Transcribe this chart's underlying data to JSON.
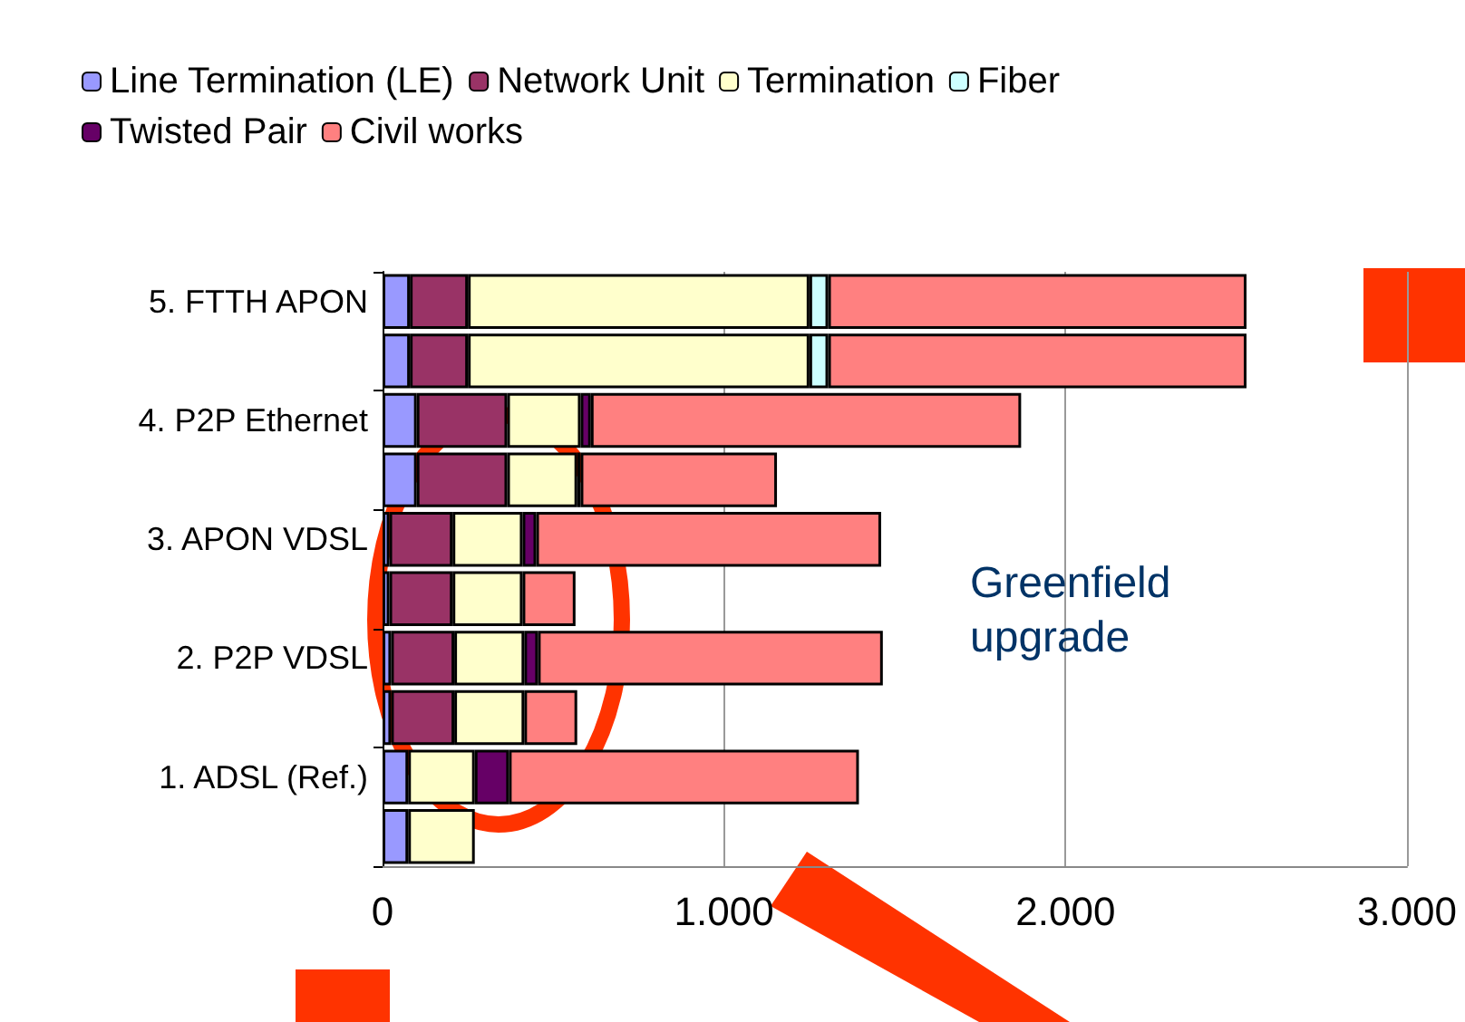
{
  "chart_data": {
    "type": "bar",
    "orientation": "horizontal",
    "stacked": true,
    "categories": [
      "5. FTTH APON",
      null,
      "4. P2P Ethernet",
      null,
      "3. APON VDSL",
      null,
      "2. P2P VDSL",
      null,
      "1. ADSL (Ref.)",
      null
    ],
    "series": [
      {
        "name": "Line Termination (LE)",
        "color": "#9999ff",
        "values": [
          80,
          80,
          100,
          100,
          20,
          20,
          25,
          25,
          75,
          75
        ]
      },
      {
        "name": "Network Unit",
        "color": "#993366",
        "values": [
          170,
          170,
          265,
          265,
          185,
          185,
          185,
          185,
          null,
          null
        ]
      },
      {
        "name": "Termination",
        "color": "#ffffcc",
        "values": [
          1000,
          1000,
          215,
          205,
          205,
          205,
          205,
          205,
          195,
          195
        ]
      },
      {
        "name": "Fiber",
        "color": "#ccffff",
        "values": [
          55,
          55,
          null,
          10,
          null,
          null,
          null,
          null,
          null,
          null
        ]
      },
      {
        "name": "Twisted Pair",
        "color": "#660066",
        "values": [
          null,
          null,
          30,
          null,
          40,
          null,
          40,
          null,
          100,
          null
        ]
      },
      {
        "name": "Civil works",
        "color": "#ff8080",
        "values": [
          1225,
          1225,
          1260,
          575,
          1010,
          155,
          1010,
          155,
          1025,
          null
        ]
      }
    ],
    "xlim": [
      0,
      3000
    ],
    "xticks": [
      0,
      {
        "value": 1000,
        "label": "1.000"
      },
      {
        "value": 2000,
        "label": "2.000"
      },
      {
        "value": 3000,
        "label": "3.000"
      }
    ],
    "grid": "x",
    "legend": "top left",
    "annotations": [
      "Greenfield\nupgrade"
    ]
  }
}
